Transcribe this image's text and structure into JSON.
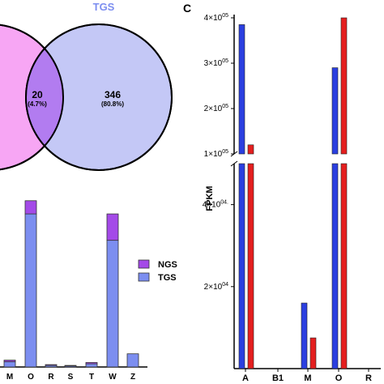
{
  "venn": {
    "right_label": "TGS",
    "intersection_count": "20",
    "intersection_pct": "(4.7%)",
    "right_count": "346",
    "right_pct": "(80.8%)",
    "colors": {
      "left": "#f7a6f4",
      "right": "#c4c8f6",
      "overlap": "#b27cf0"
    }
  },
  "panel_c_letter": "C",
  "chart_data": [
    {
      "type": "bar",
      "stacked": true,
      "categories": [
        "M",
        "O",
        "R",
        "S",
        "T",
        "W",
        "Z"
      ],
      "series": [
        {
          "name": "TGS",
          "color": "#7c8ef0",
          "values": [
            2,
            58,
            0.6,
            0.4,
            1.2,
            48,
            5
          ]
        },
        {
          "name": "NGS",
          "color": "#a44ae8",
          "values": [
            0.6,
            5,
            0.3,
            0.2,
            0.5,
            10,
            0
          ]
        }
      ],
      "legend": {
        "position": "right",
        "order": [
          "NGS",
          "TGS"
        ]
      },
      "ylim": [
        0,
        66
      ],
      "xlabel": "",
      "ylabel": "",
      "title": ""
    },
    {
      "type": "bar",
      "ylabel": "FPKM",
      "categories": [
        "A",
        "B1",
        "M",
        "O",
        "R"
      ],
      "series": [
        {
          "color": "#2b3fe0",
          "values": [
            385000,
            0,
            16000,
            290000,
            0
          ]
        },
        {
          "color": "#e41f1f",
          "values": [
            120000,
            0,
            7500,
            400000,
            0
          ]
        }
      ],
      "axis_break": [
        50000,
        100000
      ],
      "ylim": [
        0,
        400000
      ],
      "ticks": [
        {
          "value": 20000,
          "label": "2×10"
        },
        {
          "value": 40000,
          "label": "4×10"
        },
        {
          "value": 100000,
          "label": "1×10"
        },
        {
          "value": 200000,
          "label": "2×10"
        },
        {
          "value": 300000,
          "label": "3×10"
        },
        {
          "value": 400000,
          "label": "4×10"
        }
      ],
      "tick_exponents": {
        "20000": "04",
        "40000": "04.",
        "100000": "05",
        "200000": "05",
        "300000": "05",
        "400000": "05"
      }
    }
  ]
}
